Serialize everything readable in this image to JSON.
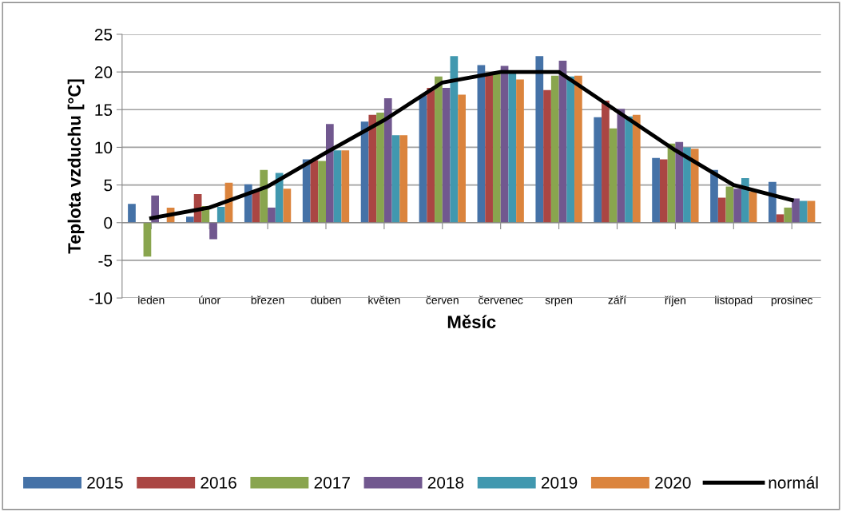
{
  "chart_data": {
    "type": "bar",
    "xlabel": "Měsíc",
    "ylabel": "Teplota vzduchu [°C]",
    "categories": [
      "leden",
      "únor",
      "březen",
      "duben",
      "květen",
      "červen",
      "červenec",
      "srpen",
      "září",
      "říjen",
      "listopad",
      "prosinec"
    ],
    "series": [
      {
        "name": "2015",
        "color": "#4572a7",
        "values": [
          2.5,
          0.8,
          5.1,
          8.4,
          13.4,
          16.9,
          20.9,
          22.1,
          14.0,
          8.6,
          7.0,
          5.4
        ]
      },
      {
        "name": "2016",
        "color": "#aa4643",
        "values": [
          0,
          3.8,
          4.3,
          8.3,
          14.3,
          17.9,
          19.6,
          17.6,
          16.2,
          8.4,
          3.3,
          1.1
        ]
      },
      {
        "name": "2017",
        "color": "#89a54e",
        "values": [
          -4.5,
          2.2,
          7.0,
          8.2,
          14.6,
          19.4,
          19.8,
          19.5,
          12.5,
          10.5,
          4.8,
          2.0
        ]
      },
      {
        "name": "2018",
        "color": "#71588f",
        "values": [
          3.6,
          -2.2,
          2.0,
          13.1,
          16.5,
          17.9,
          20.8,
          21.5,
          15.1,
          10.7,
          4.5,
          3.2
        ]
      },
      {
        "name": "2019",
        "color": "#4198af",
        "values": [
          0,
          2.1,
          6.6,
          9.6,
          11.6,
          22.1,
          19.8,
          19.4,
          14.1,
          10.0,
          5.9,
          2.9
        ]
      },
      {
        "name": "2020",
        "color": "#db843d",
        "values": [
          2.0,
          5.3,
          4.5,
          9.6,
          11.6,
          17.0,
          19.0,
          19.5,
          14.3,
          9.8,
          4.1,
          2.9
        ]
      },
      {
        "name": "normál",
        "color": "#000000",
        "type": "line",
        "values": [
          0.6,
          2.0,
          4.8,
          9.3,
          13.6,
          18.6,
          20.0,
          20.0,
          14.8,
          9.6,
          5.0,
          3.0
        ]
      }
    ],
    "ylim": [
      -10,
      25
    ],
    "yticks": [
      -10,
      -5,
      0,
      5,
      10,
      15,
      20,
      25
    ],
    "grid": "y",
    "legend": "bottom"
  }
}
